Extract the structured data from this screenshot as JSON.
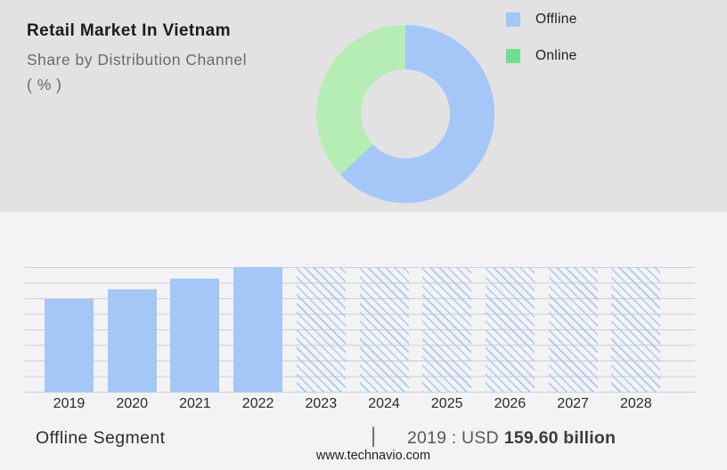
{
  "header": {
    "title": "Retail Market In Vietnam",
    "subtitle": "Share by Distribution Channel",
    "unit_line": "( % )"
  },
  "legend": {
    "items": [
      {
        "label": "Offline",
        "color": "#a4c7f8"
      },
      {
        "label": "Online",
        "color": "#70dc8e"
      }
    ]
  },
  "chart_data": [
    {
      "type": "pie",
      "subtype": "donut",
      "title": "Share by Distribution Channel (%)",
      "labels": [
        "Offline",
        "Online"
      ],
      "values": [
        63,
        37
      ],
      "colors": [
        "#a4c7f8",
        "#b6edb5"
      ],
      "start_angle_deg": 0,
      "direction": "clockwise",
      "hole_ratio": 0.5,
      "legend_position": "right",
      "data_labels": "none"
    },
    {
      "type": "bar",
      "categories": [
        "2019",
        "2020",
        "2021",
        "2022",
        "2023",
        "2024",
        "2025",
        "2026",
        "2027",
        "2028"
      ],
      "relative_heights": [
        0.745,
        0.823,
        0.906,
        1,
        1,
        1,
        1,
        1,
        1,
        1
      ],
      "forecast_hatched": [
        false,
        false,
        false,
        false,
        true,
        true,
        true,
        true,
        true,
        true
      ],
      "bar_color": "#a4c7f8",
      "hatch_color": "#a8c8f2",
      "grid": "horizontal",
      "gridline_count": 9,
      "y_axis_tick_labels": "none",
      "annotation": "2019 : USD 159.60 billion",
      "series_label": "Offline Segment"
    }
  ],
  "footer": {
    "segment_label": "Offline Segment",
    "divider": "|",
    "value_prefix": "2019 : USD",
    "value_bold": "159.60 billion",
    "website": "www.technavio.com"
  },
  "colors": {
    "top_background": "#e2e2e3",
    "bottom_background": "#f3f3f5",
    "gridline": "#cecece",
    "bar_solid": "#a4c7f8",
    "bar_hatch": "#a8c8f2",
    "title_text": "#1c1c1c",
    "subtitle_text": "#6a6a6a",
    "axis_text": "#2a2a2a",
    "value_text": "#595959",
    "value_bold_text": "#3c3c3c"
  }
}
